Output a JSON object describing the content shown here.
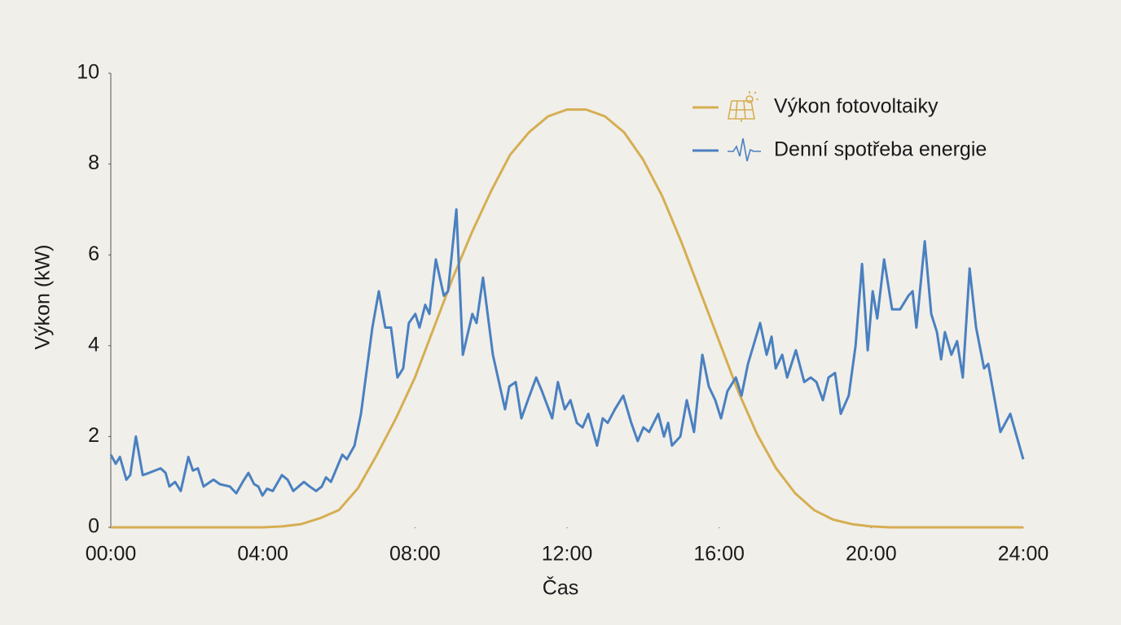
{
  "chart_data": {
    "type": "line",
    "x_label": "Čas",
    "y_label": "Výkon (kW)",
    "xlim": [
      0,
      24
    ],
    "xticks": [
      {
        "value": 0,
        "label": "00:00"
      },
      {
        "value": 4,
        "label": "04:00"
      },
      {
        "value": 8,
        "label": "08:00"
      },
      {
        "value": 12,
        "label": "12:00"
      },
      {
        "value": 16,
        "label": "16:00"
      },
      {
        "value": 20,
        "label": "20:00"
      },
      {
        "value": 24,
        "label": "24:00"
      }
    ],
    "ylim": [
      0,
      10
    ],
    "yticks": [
      0,
      2,
      4,
      6,
      8,
      10
    ],
    "grid": false,
    "legend": "top-right",
    "series": [
      {
        "name": "Výkon fotovoltaiky",
        "color": "#d6ae52",
        "x": [
          0,
          0.5,
          1,
          1.5,
          2,
          2.5,
          3,
          3.5,
          4,
          4.5,
          5,
          5.5,
          6,
          6.5,
          7,
          7.5,
          8,
          8.5,
          9,
          9.5,
          10,
          10.5,
          11,
          11.5,
          12,
          12.5,
          13,
          13.5,
          14,
          14.5,
          15,
          15.5,
          16,
          16.5,
          17,
          17.5,
          18,
          18.5,
          19,
          19.5,
          20,
          20.5,
          21,
          21.5,
          22,
          22.5,
          23,
          23.5,
          24
        ],
        "values": [
          0,
          0,
          0,
          0,
          0,
          0,
          0,
          0,
          0,
          0.02,
          0.07,
          0.2,
          0.38,
          0.86,
          1.6,
          2.4,
          3.3,
          4.4,
          5.5,
          6.5,
          7.4,
          8.2,
          8.7,
          9.05,
          9.2,
          9.2,
          9.05,
          8.7,
          8.1,
          7.3,
          6.3,
          5.2,
          4.1,
          3.0,
          2.05,
          1.3,
          0.75,
          0.38,
          0.17,
          0.07,
          0.02,
          0,
          0,
          0,
          0,
          0,
          0,
          0,
          0
        ]
      },
      {
        "name": "Denní spotřeba energie",
        "color": "#4a80c0",
        "x": [
          0,
          0.13,
          0.24,
          0.41,
          0.51,
          0.66,
          0.84,
          1.01,
          1.16,
          1.31,
          1.44,
          1.54,
          1.69,
          1.84,
          2.04,
          2.16,
          2.29,
          2.44,
          2.7,
          2.87,
          3.13,
          3.3,
          3.47,
          3.62,
          3.77,
          3.88,
          3.99,
          4.11,
          4.26,
          4.5,
          4.65,
          4.8,
          5.08,
          5.23,
          5.4,
          5.55,
          5.66,
          5.79,
          6.09,
          6.21,
          6.41,
          6.58,
          6.88,
          7.05,
          7.22,
          7.37,
          7.54,
          7.69,
          7.84,
          8.01,
          8.12,
          8.27,
          8.38,
          8.55,
          8.76,
          8.87,
          9.09,
          9.26,
          9.51,
          9.62,
          9.79,
          10.05,
          10.37,
          10.48,
          10.65,
          10.8,
          10.97,
          11.19,
          11.34,
          11.61,
          11.76,
          11.94,
          12.09,
          12.26,
          12.41,
          12.56,
          12.79,
          12.94,
          13.07,
          13.26,
          13.48,
          13.69,
          13.86,
          14.01,
          14.16,
          14.4,
          14.55,
          14.66,
          14.76,
          14.98,
          15.15,
          15.34,
          15.56,
          15.73,
          15.9,
          16.05,
          16.22,
          16.44,
          16.59,
          16.76,
          17.08,
          17.25,
          17.38,
          17.49,
          17.66,
          17.79,
          18.02,
          18.24,
          18.41,
          18.56,
          18.73,
          18.88,
          19.05,
          19.2,
          19.41,
          19.59,
          19.76,
          19.91,
          20.04,
          20.16,
          20.34,
          20.55,
          20.76,
          20.98,
          21.09,
          21.19,
          21.41,
          21.58,
          21.73,
          21.84,
          21.94,
          22.11,
          22.26,
          22.41,
          22.59,
          22.76,
          22.97,
          23.08,
          23.4,
          23.66,
          24
        ],
        "values": [
          1.6,
          1.4,
          1.55,
          1.05,
          1.15,
          2.0,
          1.15,
          1.2,
          1.25,
          1.3,
          1.2,
          0.9,
          1.0,
          0.8,
          1.55,
          1.25,
          1.3,
          0.9,
          1.05,
          0.95,
          0.9,
          0.75,
          1.0,
          1.2,
          0.95,
          0.9,
          0.7,
          0.85,
          0.8,
          1.15,
          1.05,
          0.8,
          1.0,
          0.9,
          0.8,
          0.9,
          1.1,
          1.0,
          1.6,
          1.5,
          1.8,
          2.5,
          4.4,
          5.2,
          4.4,
          4.4,
          3.3,
          3.5,
          4.5,
          4.7,
          4.4,
          4.9,
          4.7,
          5.9,
          5.1,
          5.2,
          7.0,
          3.8,
          4.7,
          4.5,
          5.5,
          3.8,
          2.6,
          3.1,
          3.2,
          2.4,
          2.8,
          3.3,
          3.0,
          2.4,
          3.2,
          2.6,
          2.8,
          2.3,
          2.2,
          2.5,
          1.8,
          2.4,
          2.3,
          2.6,
          2.9,
          2.3,
          1.9,
          2.2,
          2.1,
          2.5,
          2.0,
          2.3,
          1.8,
          2.0,
          2.8,
          2.1,
          3.8,
          3.1,
          2.8,
          2.4,
          3.0,
          3.3,
          2.9,
          3.6,
          4.5,
          3.8,
          4.2,
          3.5,
          3.8,
          3.3,
          3.9,
          3.2,
          3.3,
          3.2,
          2.8,
          3.3,
          3.4,
          2.5,
          2.9,
          4.0,
          5.8,
          3.9,
          5.2,
          4.6,
          5.9,
          4.8,
          4.8,
          5.1,
          5.2,
          4.4,
          6.3,
          4.7,
          4.3,
          3.7,
          4.3,
          3.8,
          4.1,
          3.3,
          5.7,
          4.4,
          3.5,
          3.6,
          2.1,
          2.5,
          1.5
        ]
      }
    ]
  }
}
